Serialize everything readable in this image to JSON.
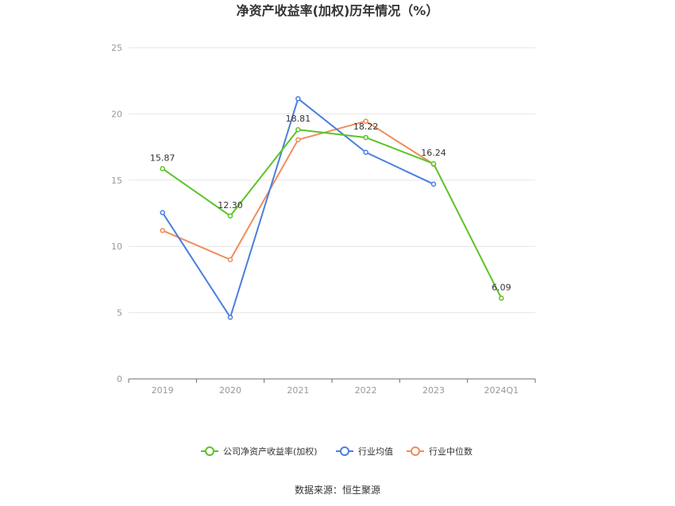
{
  "chart_data": {
    "type": "line",
    "title": "净资产收益率(加权)历年情况（%）",
    "categories": [
      "2019",
      "2020",
      "2021",
      "2022",
      "2023",
      "2024Q1"
    ],
    "ylim": [
      0,
      25
    ],
    "yticks": [
      0,
      5,
      10,
      15,
      20,
      25
    ],
    "grid": true,
    "legend_position": "bottom",
    "series": [
      {
        "name": "公司净资产收益率(加权)",
        "color": "#5cc326",
        "values": [
          15.87,
          12.3,
          18.81,
          18.22,
          16.24,
          6.09
        ],
        "labels": [
          "15.87",
          "12.30",
          "18.81",
          "18.22",
          "16.24",
          "6.09"
        ]
      },
      {
        "name": "行业均值",
        "color": "#4a7fdd",
        "values": [
          12.55,
          4.65,
          21.15,
          17.1,
          14.7,
          null
        ]
      },
      {
        "name": "行业中位数",
        "color": "#f08c5c",
        "values": [
          11.2,
          9.0,
          18.05,
          19.45,
          16.2,
          null
        ]
      }
    ]
  },
  "source": "数据来源：恒生聚源"
}
